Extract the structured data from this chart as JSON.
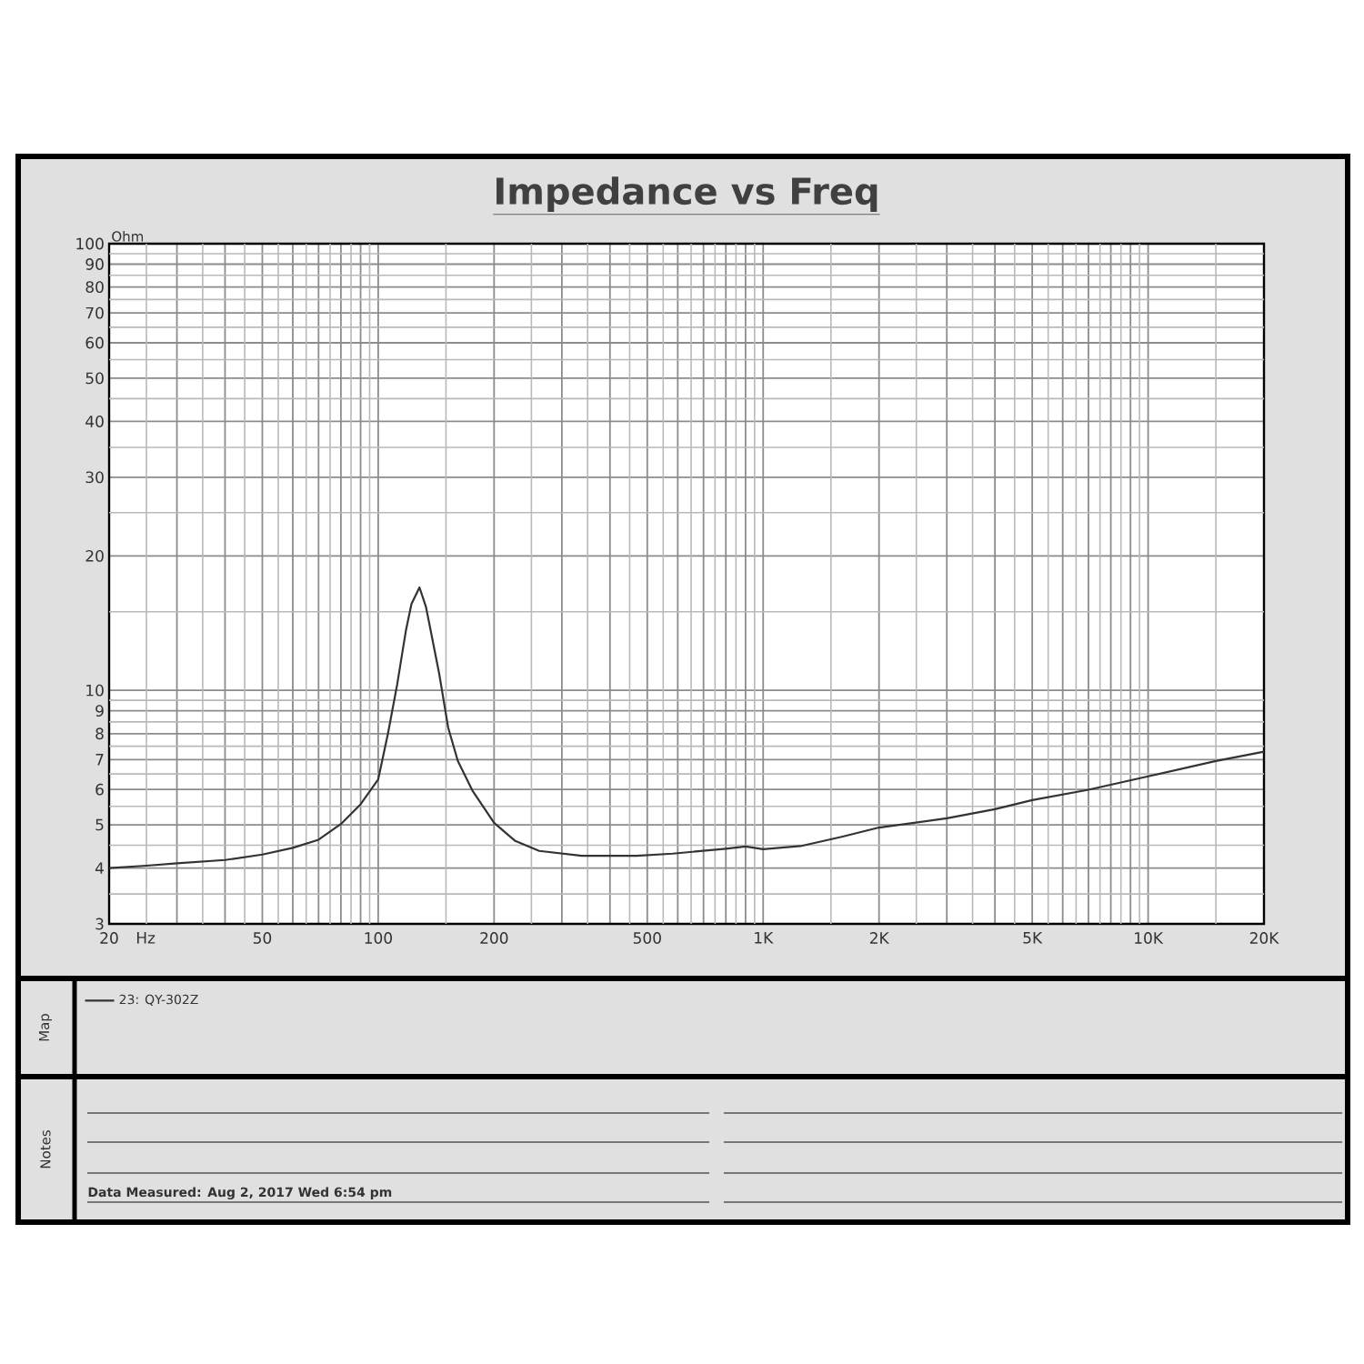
{
  "chart_data": {
    "type": "line",
    "title": "Impedance vs Freq",
    "ylabel": "Ohm",
    "xlabel": "Hz",
    "x": [
      20,
      25,
      30,
      40,
      50,
      60,
      70,
      80,
      90,
      100,
      106,
      112,
      118,
      122,
      128,
      133,
      136,
      144,
      152,
      161,
      176,
      200,
      227,
      262,
      338,
      469,
      582,
      800,
      900,
      1000,
      1250,
      1600,
      2000,
      3000,
      4000,
      5000,
      7000,
      10000,
      15000,
      20000
    ],
    "series": [
      {
        "name": "23: QY-302Z",
        "color": "#333333",
        "values": [
          4.0,
          4.05,
          4.1,
          4.17,
          4.29,
          4.44,
          4.63,
          5.02,
          5.56,
          6.32,
          8.0,
          10.3,
          13.6,
          15.6,
          17.0,
          15.4,
          14.0,
          10.9,
          8.25,
          6.95,
          5.95,
          5.05,
          4.6,
          4.37,
          4.26,
          4.26,
          4.31,
          4.42,
          4.47,
          4.41,
          4.48,
          4.7,
          4.93,
          5.17,
          5.42,
          5.68,
          5.99,
          6.42,
          6.95,
          7.29
        ]
      }
    ],
    "log": "xy",
    "xlim": [
      20,
      20000
    ],
    "ylim": [
      3,
      100
    ],
    "xticks": [
      20,
      {
        "value": 25,
        "label": null
      },
      {
        "value": 30,
        "label": null
      },
      {
        "value": 35,
        "label": null
      },
      {
        "value": 40,
        "label": null
      },
      {
        "value": 45,
        "label": null
      },
      50,
      {
        "value": 55,
        "label": null
      },
      {
        "value": 60,
        "label": null
      },
      {
        "value": 65,
        "label": null
      },
      {
        "value": 70,
        "label": null
      },
      {
        "value": 75,
        "label": null
      },
      {
        "value": 80,
        "label": null
      },
      {
        "value": 85,
        "label": null
      },
      {
        "value": 90,
        "label": null
      },
      {
        "value": 95,
        "label": null
      },
      100,
      {
        "value": 150,
        "label": null
      },
      200,
      {
        "value": 250,
        "label": null
      },
      {
        "value": 300,
        "label": null
      },
      {
        "value": 350,
        "label": null
      },
      {
        "value": 400,
        "label": null
      },
      {
        "value": 450,
        "label": null
      },
      500,
      {
        "value": 550,
        "label": null
      },
      {
        "value": 600,
        "label": null
      },
      {
        "value": 650,
        "label": null
      },
      {
        "value": 700,
        "label": null
      },
      {
        "value": 750,
        "label": null
      },
      {
        "value": 800,
        "label": null
      },
      {
        "value": 850,
        "label": null
      },
      {
        "value": 900,
        "label": null
      },
      {
        "value": 950,
        "label": null
      },
      {
        "value": 1000,
        "label": "1K"
      },
      {
        "value": 1500,
        "label": null
      },
      {
        "value": 2000,
        "label": "2K"
      },
      {
        "value": 2500,
        "label": null
      },
      {
        "value": 3000,
        "label": null
      },
      {
        "value": 3500,
        "label": null
      },
      {
        "value": 4000,
        "label": null
      },
      {
        "value": 4500,
        "label": null
      },
      {
        "value": 5000,
        "label": "5K"
      },
      {
        "value": 5500,
        "label": null
      },
      {
        "value": 6000,
        "label": null
      },
      {
        "value": 6500,
        "label": null
      },
      {
        "value": 7000,
        "label": null
      },
      {
        "value": 7500,
        "label": null
      },
      {
        "value": 8000,
        "label": null
      },
      {
        "value": 8500,
        "label": null
      },
      {
        "value": 9000,
        "label": null
      },
      {
        "value": 9500,
        "label": null
      },
      {
        "value": 10000,
        "label": "10K"
      },
      {
        "value": 15000,
        "label": null
      },
      {
        "value": 20000,
        "label": "20K"
      }
    ],
    "yticks": [
      3,
      {
        "value": 3.5,
        "label": null
      },
      4,
      {
        "value": 4.5,
        "label": null
      },
      5,
      {
        "value": 5.5,
        "label": null
      },
      6,
      {
        "value": 6.5,
        "label": null
      },
      7,
      {
        "value": 7.5,
        "label": null
      },
      8,
      {
        "value": 8.5,
        "label": null
      },
      9,
      {
        "value": 9.5,
        "label": null
      },
      10,
      {
        "value": 15,
        "label": null
      },
      20,
      {
        "value": 25,
        "label": null
      },
      30,
      {
        "value": 35,
        "label": null
      },
      40,
      {
        "value": 45,
        "label": null
      },
      50,
      {
        "value": 55,
        "label": null
      },
      60,
      {
        "value": 65,
        "label": null
      },
      70,
      {
        "value": 75,
        "label": null
      },
      80,
      {
        "value": 85,
        "label": null
      },
      90,
      {
        "value": 95,
        "label": null
      },
      100
    ],
    "grid": true,
    "legend": "bottom",
    "annotations": [
      "Map",
      "Notes",
      "Data Measured: Aug 2, 2017 Wed 6:54 pm"
    ]
  }
}
